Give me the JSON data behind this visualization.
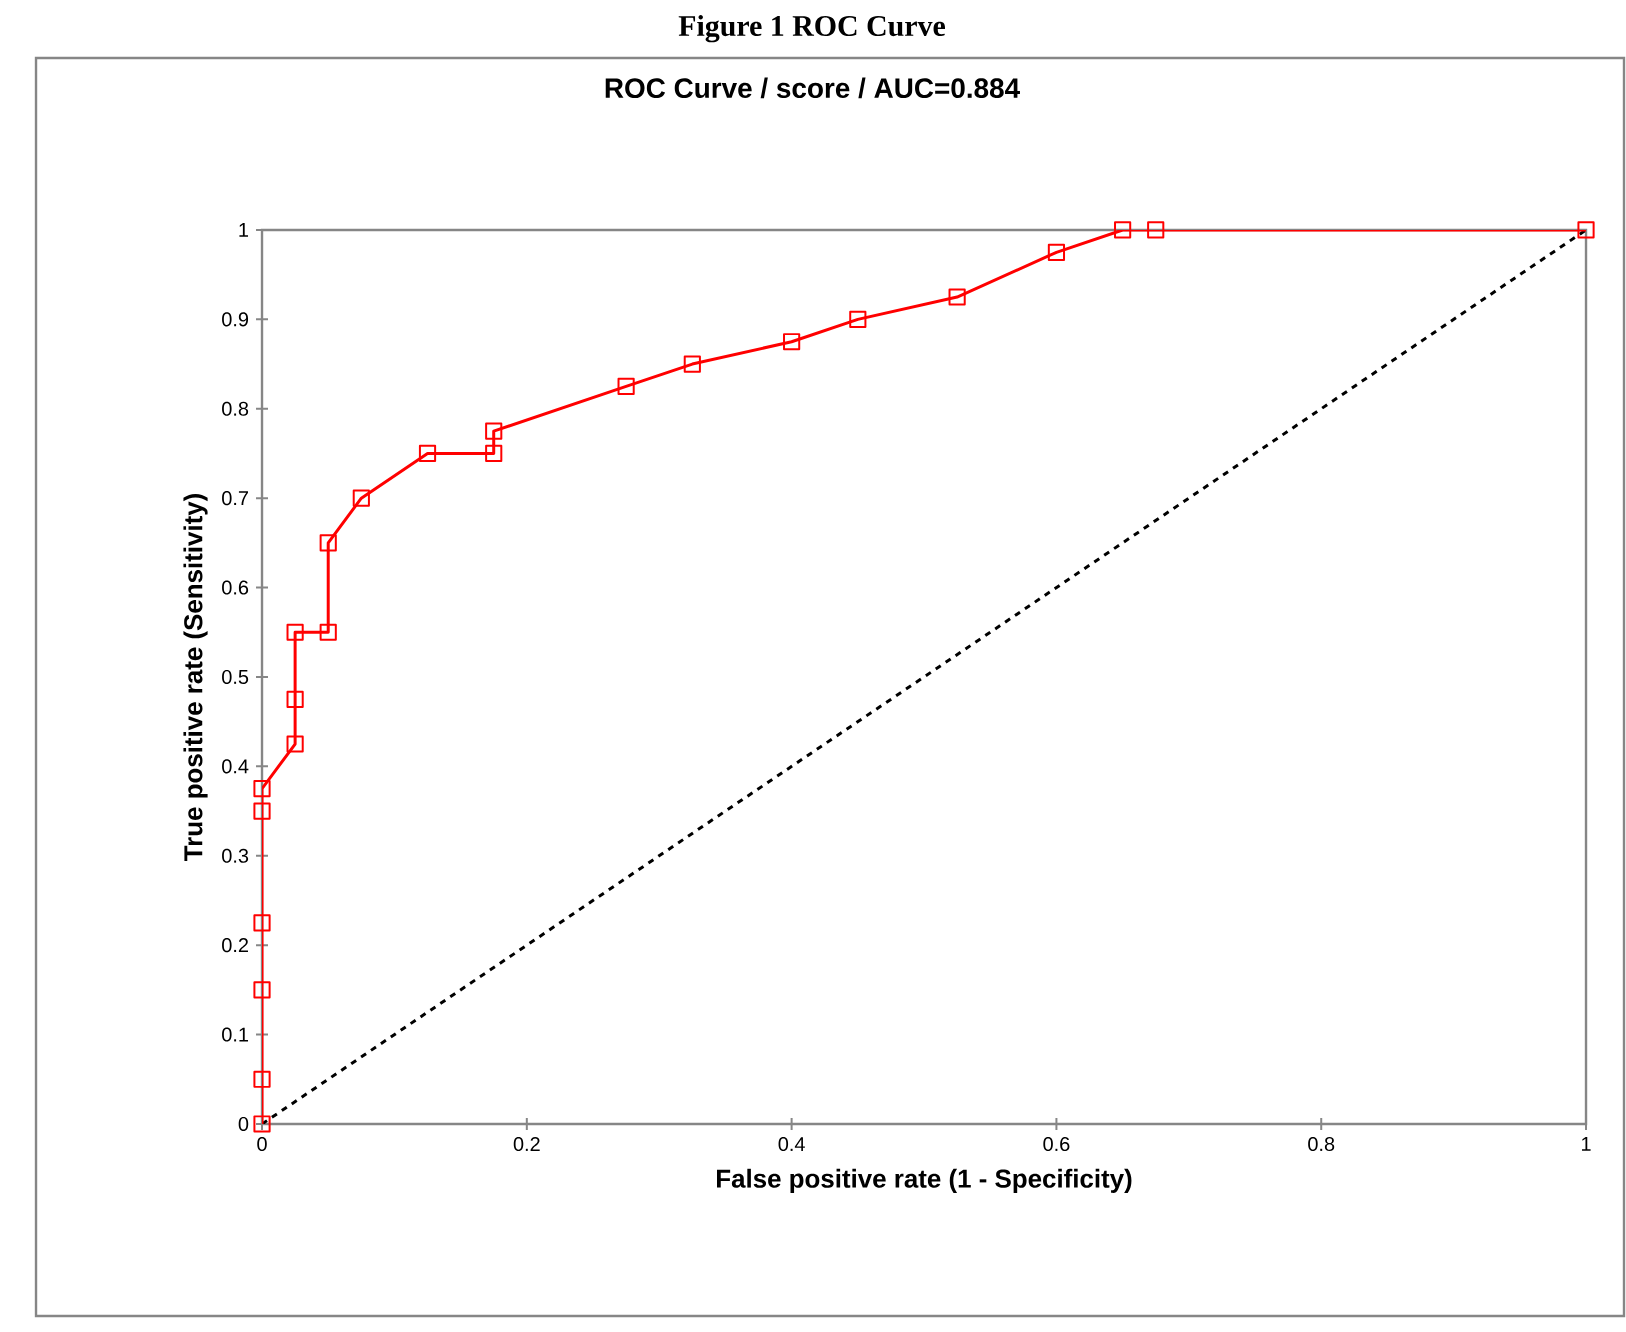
{
  "chart_data": {
    "type": "line",
    "title": "ROC Curve / score / AUC=0.884",
    "annotations": [
      "Figure 1 ROC Curve"
    ],
    "xlabel": "False positive rate (1 - Specificity)",
    "ylabel": "True positive rate (Sensitivity)",
    "xlim": [
      0,
      1
    ],
    "ylim": [
      0,
      1
    ],
    "xticks": [
      0,
      0.2,
      0.4,
      0.6,
      0.8,
      1
    ],
    "yticks": [
      0,
      0.1,
      0.2,
      0.3,
      0.4,
      0.5,
      0.6,
      0.7,
      0.8,
      0.9,
      1
    ],
    "grid": false,
    "series": [
      {
        "color": "#ff0000",
        "marker": "square",
        "line_style": "solid",
        "x": [
          0,
          0,
          0,
          0,
          0,
          0,
          0.025,
          0.025,
          0.025,
          0.05,
          0.05,
          0.075,
          0.125,
          0.175,
          0.175,
          0.275,
          0.325,
          0.4,
          0.45,
          0.525,
          0.6,
          0.65,
          0.675,
          1
        ],
        "values": [
          0,
          0.05,
          0.15,
          0.225,
          0.35,
          0.375,
          0.425,
          0.475,
          0.55,
          0.55,
          0.65,
          0.7,
          0.75,
          0.75,
          0.775,
          0.825,
          0.85,
          0.875,
          0.9,
          0.925,
          0.975,
          1,
          1,
          1
        ]
      },
      {
        "color": "#000000",
        "marker": "none",
        "line_style": "dashed",
        "x": [
          0,
          1
        ],
        "values": [
          0,
          1
        ]
      }
    ]
  }
}
